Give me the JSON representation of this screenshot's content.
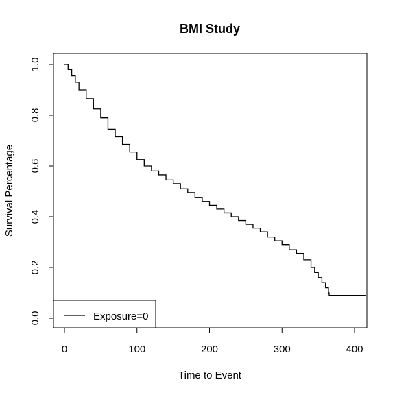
{
  "chart_data": {
    "type": "line",
    "title": "BMI Study",
    "xlabel": "Time to Event",
    "ylabel": "Survival Percentage",
    "xlim": [
      0,
      415
    ],
    "ylim": [
      0,
      1.0
    ],
    "x_ticks": [
      0,
      100,
      200,
      300,
      400
    ],
    "y_ticks": [
      0.0,
      0.2,
      0.4,
      0.6,
      0.8,
      1.0
    ],
    "x_tick_labels": [
      "0",
      "100",
      "200",
      "300",
      "400"
    ],
    "y_tick_labels": [
      "0.0",
      "0.2",
      "0.4",
      "0.6",
      "0.8",
      "1.0"
    ],
    "grid": false,
    "legend_position": "bottom-left",
    "series": [
      {
        "name": "Exposure=0",
        "step": true,
        "color": "#000000",
        "points": [
          [
            0,
            1.0
          ],
          [
            5,
            0.98
          ],
          [
            10,
            0.955
          ],
          [
            15,
            0.93
          ],
          [
            20,
            0.9
          ],
          [
            30,
            0.865
          ],
          [
            40,
            0.825
          ],
          [
            50,
            0.79
          ],
          [
            60,
            0.745
          ],
          [
            70,
            0.715
          ],
          [
            80,
            0.685
          ],
          [
            90,
            0.655
          ],
          [
            100,
            0.625
          ],
          [
            110,
            0.6
          ],
          [
            120,
            0.58
          ],
          [
            130,
            0.565
          ],
          [
            140,
            0.545
          ],
          [
            150,
            0.53
          ],
          [
            160,
            0.51
          ],
          [
            170,
            0.495
          ],
          [
            180,
            0.475
          ],
          [
            190,
            0.46
          ],
          [
            200,
            0.445
          ],
          [
            210,
            0.43
          ],
          [
            220,
            0.415
          ],
          [
            230,
            0.4
          ],
          [
            240,
            0.385
          ],
          [
            250,
            0.37
          ],
          [
            260,
            0.355
          ],
          [
            270,
            0.34
          ],
          [
            280,
            0.32
          ],
          [
            290,
            0.305
          ],
          [
            300,
            0.29
          ],
          [
            310,
            0.27
          ],
          [
            320,
            0.255
          ],
          [
            330,
            0.23
          ],
          [
            340,
            0.2
          ],
          [
            345,
            0.18
          ],
          [
            350,
            0.16
          ],
          [
            355,
            0.14
          ],
          [
            360,
            0.12
          ],
          [
            364,
            0.1
          ],
          [
            365,
            0.09
          ],
          [
            415,
            0.09
          ]
        ]
      }
    ]
  }
}
